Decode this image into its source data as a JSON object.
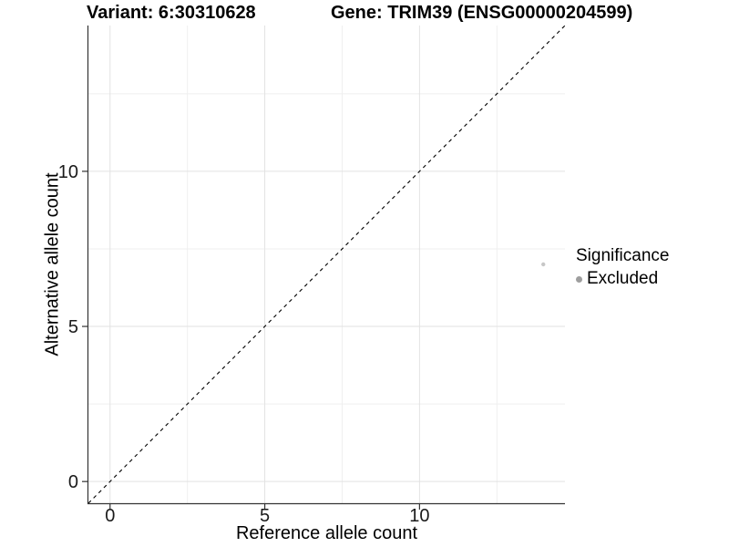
{
  "page": {
    "background": "#ffffff"
  },
  "chart_data": {
    "type": "scatter",
    "titles": {
      "left": "Variant: 6:30310628",
      "right": "Gene: TRIM39 (ENSG00000204599)"
    },
    "xlabel": "Reference allele count",
    "ylabel": "Alternative allele count",
    "xlim": [
      -0.7,
      14.7
    ],
    "ylim": [
      -0.7,
      14.7
    ],
    "x_ticks": [
      0,
      5,
      10
    ],
    "y_ticks": [
      0,
      5,
      10
    ],
    "x_minor_ticks": [
      2.5,
      7.5,
      12.5
    ],
    "y_minor_ticks": [
      2.5,
      7.5,
      12.5
    ],
    "grid": {
      "shown": true,
      "major_color": "#e2e2e2",
      "minor_color": "#efefef"
    },
    "axis_color": "#343434",
    "tick_label_color": "#1a1a1a",
    "identity_line": {
      "style": "dashed",
      "x1": -0.7,
      "y1": -0.7,
      "x2": 14.7,
      "y2": 14.7,
      "color": "#000000"
    },
    "series": [
      {
        "name": "Excluded",
        "color": "#c7c7c7",
        "points": [
          {
            "x": 14,
            "y": 7
          }
        ]
      }
    ],
    "legend": {
      "title": "Significance",
      "position": "right",
      "items": [
        {
          "label": "Excluded",
          "color": "#9e9e9e"
        }
      ]
    }
  }
}
